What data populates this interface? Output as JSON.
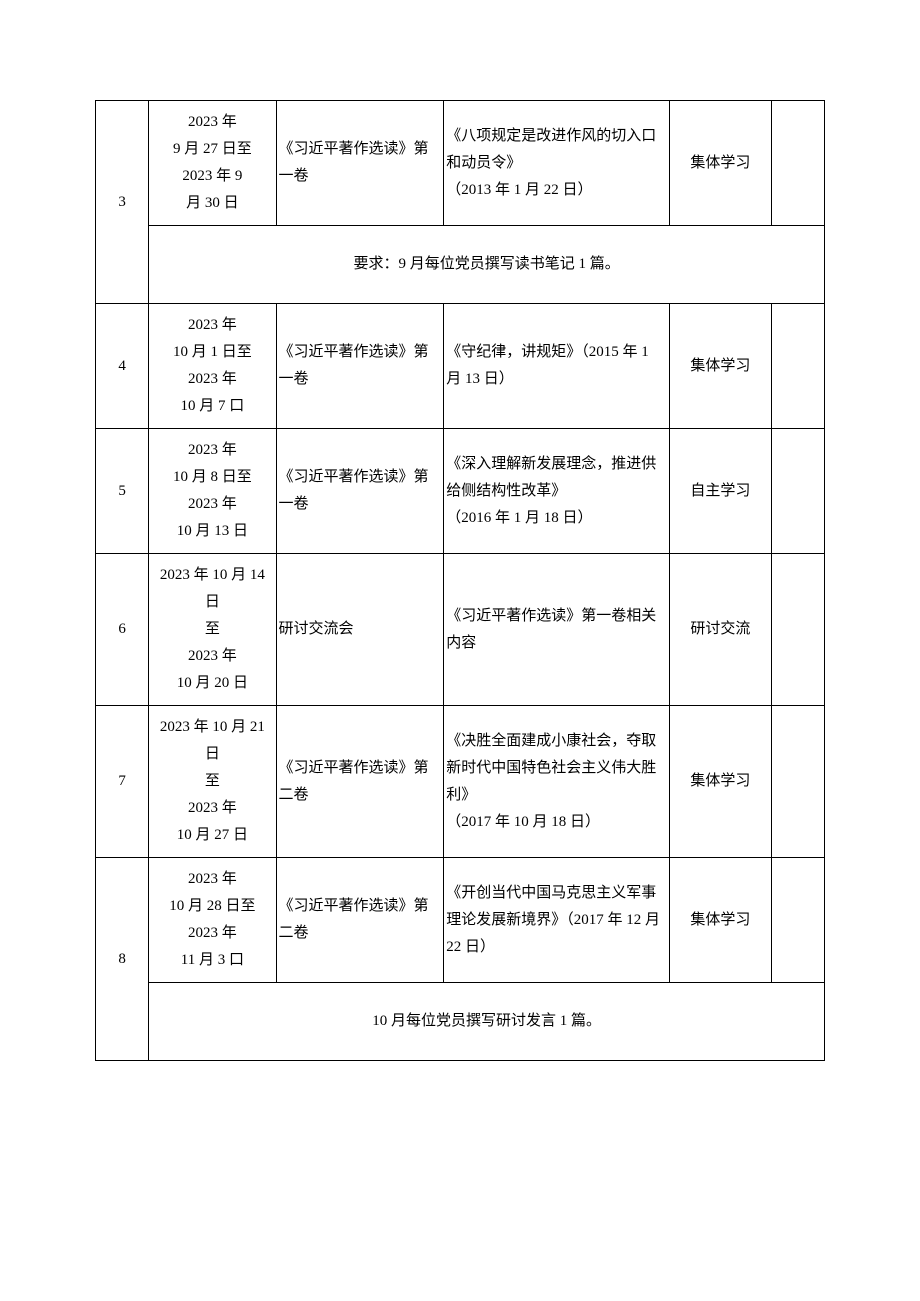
{
  "table": {
    "colors": {
      "border": "#000000",
      "background": "#ffffff",
      "text": "#000000"
    },
    "font_size": 15,
    "rows": [
      {
        "num": "3",
        "date": "2023 年\n9 月 27 日至\n2023 年 9\n月 30 日",
        "book": "《习近平著作选读》第一卷",
        "topic": "《八项规定是改进作风的切入口和动员令》\n（2013 年 1 月 22 日）",
        "method": "集体学习"
      },
      {
        "note": "要求：9 月每位党员撰写读书笔记 1 篇。",
        "note_span_from": 2
      },
      {
        "num": "4",
        "date": "2023 年\n10 月 1 日至\n2023 年\n10 月 7 口",
        "book": "《习近平著作选读》第一卷",
        "topic": "《守纪律，讲规矩》（2015 年 1 月 13 日）",
        "method": "集体学习"
      },
      {
        "num": "5",
        "date": "2023 年\n10 月 8 日至\n2023 年\n10 月 13 日",
        "book": "《习近平著作选读》第一卷",
        "topic": "《深入理解新发展理念，推进供给侧结构性改革》\n（2016 年 1 月 18 日）",
        "method": "自主学习"
      },
      {
        "num": "6",
        "date": "2023 年 10 月 14 日\n至\n2023 年\n10 月 20 日",
        "book": "研讨交流会",
        "topic": "《习近平著作选读》第一卷相关内容",
        "method": "研讨交流"
      },
      {
        "num": "7",
        "date": "2023 年 10 月 21 日\n至\n2023 年\n10 月 27 日",
        "book": "《习近平著作选读》第二卷",
        "topic": "《决胜全面建成小康社会，夺取新时代中国特色社会主义伟大胜利》\n（2017 年 10 月 18 日）",
        "method": "集体学习"
      },
      {
        "num": "8",
        "date": "2023 年\n10 月 28 日至\n2023 年\n11 月 3 口",
        "book": "《习近平著作选读》第二卷",
        "topic": "《开创当代中国马克思主义军事理论发展新境界》（2017 年 12 月 22 日）",
        "method": "集体学习"
      },
      {
        "note": "10 月每位党员撰写研讨发言 1 篇。",
        "note_span_from": 2
      }
    ]
  }
}
